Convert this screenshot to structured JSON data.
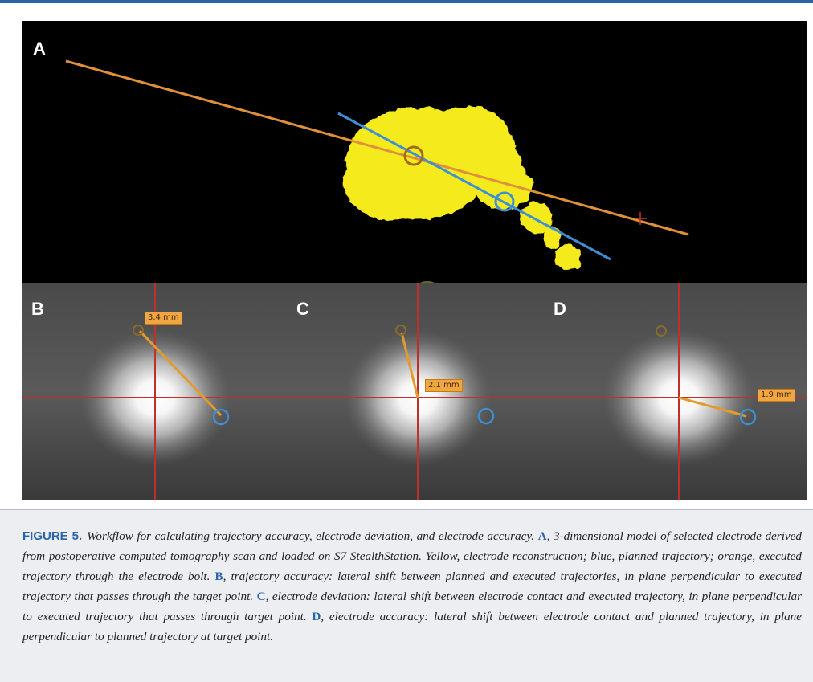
{
  "figure": {
    "label": "FIGURE 5.",
    "accent_color": "#2b63a8"
  },
  "panels": {
    "a": {
      "letter": "A",
      "colors": {
        "electrode": "#f4ea1e",
        "planned": "#3d8fd6",
        "executed": "#e0903a"
      }
    },
    "b": {
      "letter": "B",
      "measurement": "3.4 mm"
    },
    "c": {
      "letter": "C",
      "measurement": "2.1 mm"
    },
    "d": {
      "letter": "D",
      "measurement": "1.9 mm"
    }
  },
  "caption": {
    "intro": "Workflow for calculating trajectory accuracy, electrode deviation, and electrode accuracy.",
    "a_ref": "A",
    "a_text": ", 3-dimensional model of selected electrode derived from postoperative computed tomography scan and loaded on S7 StealthStation. Yellow, electrode reconstruction; blue, planned trajectory; orange, executed trajectory through the electrode bolt.",
    "b_ref": "B",
    "b_text": ", trajectory accuracy: lateral shift between planned and executed trajectories, in plane perpendicular to executed trajectory that passes through the target point.",
    "c_ref": "C",
    "c_text": ", electrode deviation: lateral shift between electrode contact and executed trajectory, in plane perpendicular to executed trajectory that passes through target point.",
    "d_ref": "D",
    "d_text": ", electrode accuracy: lateral shift between electrode contact and planned trajectory, in plane perpendicular to planned trajectory at target point."
  }
}
